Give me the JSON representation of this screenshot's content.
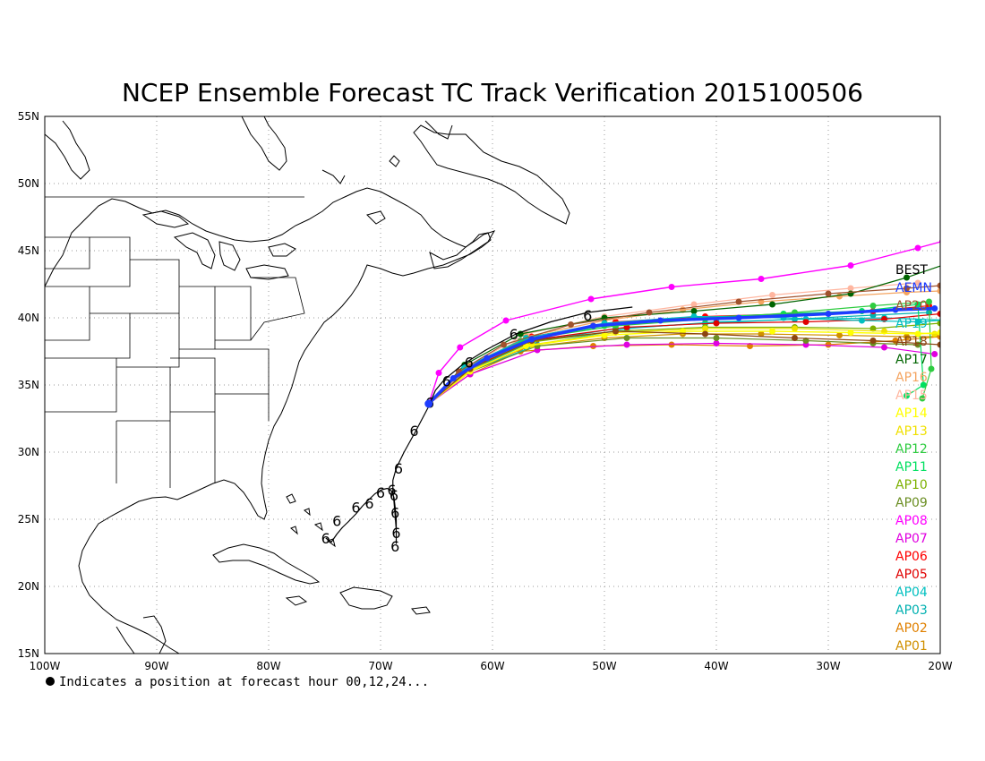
{
  "title": "NCEP Ensemble Forecast TC Track Verification 2015100506",
  "footnote": "Indicates a position at forecast hour 00,12,24...",
  "axes": {
    "lon_ticks": [
      "100W",
      "90W",
      "80W",
      "70W",
      "60W",
      "50W",
      "40W",
      "30W",
      "20W"
    ],
    "lat_ticks": [
      "55N",
      "50N",
      "45N",
      "40N",
      "35N",
      "30N",
      "25N",
      "20N",
      "15N"
    ],
    "lon_range": [
      -100,
      -20
    ],
    "lat_range": [
      15,
      55
    ],
    "grid": "dotted"
  },
  "legend": [
    {
      "label": "BEST",
      "color": "#000000"
    },
    {
      "label": "AEMN",
      "color": "#1e3cff"
    },
    {
      "label": "AP20",
      "color": "#a0522d"
    },
    {
      "label": "AP19",
      "color": "#00bfbf"
    },
    {
      "label": "AP18",
      "color": "#8b4513"
    },
    {
      "label": "AP17",
      "color": "#006400"
    },
    {
      "label": "AP16",
      "color": "#f4a460"
    },
    {
      "label": "AP15",
      "color": "#ffb6a0"
    },
    {
      "label": "AP14",
      "color": "#ffff00"
    },
    {
      "label": "AP13",
      "color": "#f0e000"
    },
    {
      "label": "AP12",
      "color": "#2ecc40"
    },
    {
      "label": "AP11",
      "color": "#00e060"
    },
    {
      "label": "AP10",
      "color": "#7cb000"
    },
    {
      "label": "AP09",
      "color": "#6b8e23"
    },
    {
      "label": "AP08",
      "color": "#ff00ff"
    },
    {
      "label": "AP07",
      "color": "#e000e0"
    },
    {
      "label": "AP06",
      "color": "#ff0000"
    },
    {
      "label": "AP05",
      "color": "#e00000"
    },
    {
      "label": "AP04",
      "color": "#00c0c0"
    },
    {
      "label": "AP03",
      "color": "#00b0b0"
    },
    {
      "label": "AP02",
      "color": "#e08000"
    },
    {
      "label": "AP01",
      "color": "#d09000"
    }
  ],
  "best_track": [
    [
      -74.9,
      23.6
    ],
    [
      -74.4,
      23.3
    ],
    [
      -73.9,
      23.9
    ],
    [
      -73.4,
      24.4
    ],
    [
      -72.9,
      24.8
    ],
    [
      -72.2,
      25.4
    ],
    [
      -71.6,
      26.0
    ],
    [
      -71.0,
      26.5
    ],
    [
      -70.5,
      26.9
    ],
    [
      -69.9,
      27.2
    ],
    [
      -69.4,
      27.3
    ],
    [
      -69.0,
      27.1
    ],
    [
      -68.8,
      26.6
    ],
    [
      -68.7,
      25.9
    ],
    [
      -68.6,
      25.0
    ],
    [
      -68.6,
      24.0
    ],
    [
      -68.6,
      23.2
    ],
    [
      -68.6,
      24.2
    ],
    [
      -68.7,
      25.3
    ],
    [
      -68.8,
      26.3
    ],
    [
      -68.9,
      27.1
    ],
    [
      -68.9,
      27.9
    ],
    [
      -68.6,
      28.8
    ],
    [
      -67.9,
      30.0
    ],
    [
      -66.9,
      31.5
    ],
    [
      -65.7,
      33.4
    ],
    [
      -65.1,
      34.6
    ],
    [
      -64.3,
      35.4
    ],
    [
      -62.7,
      36.5
    ],
    [
      -60.6,
      37.6
    ],
    [
      -57.9,
      38.8
    ],
    [
      -54.8,
      39.7
    ],
    [
      -51.5,
      40.4
    ],
    [
      -47.5,
      40.8
    ]
  ],
  "hurricane_symbols": [
    [
      -74.9,
      23.6
    ],
    [
      -73.9,
      24.9
    ],
    [
      -72.2,
      25.9
    ],
    [
      -71.0,
      26.2
    ],
    [
      -70.0,
      27.0
    ],
    [
      -69.0,
      27.2
    ],
    [
      -68.7,
      25.5
    ],
    [
      -68.6,
      24.0
    ],
    [
      -68.7,
      23.0
    ],
    [
      -68.8,
      26.8
    ],
    [
      -68.4,
      28.8
    ],
    [
      -67.0,
      31.6
    ],
    [
      -65.6,
      33.7
    ],
    [
      -64.1,
      35.3
    ],
    [
      -62.1,
      36.7
    ],
    [
      -58.1,
      38.8
    ],
    [
      -51.5,
      40.2
    ]
  ],
  "ensemble_tracks": [
    {
      "label": "AEMN",
      "color": "#1e3cff",
      "width": 3.5,
      "points": [
        [
          -65.7,
          33.6
        ],
        [
          -63.5,
          35.5
        ],
        [
          -60.5,
          37.0
        ],
        [
          -56.5,
          38.4
        ],
        [
          -51.0,
          39.4
        ],
        [
          -45.0,
          39.8
        ],
        [
          -38.0,
          40.0
        ],
        [
          -30.0,
          40.3
        ],
        [
          -24.0,
          40.6
        ],
        [
          -20.5,
          40.7
        ]
      ]
    },
    {
      "label": "AP20",
      "color": "#a0522d",
      "width": 1.2,
      "points": [
        [
          -65.7,
          33.6
        ],
        [
          -63.0,
          36.0
        ],
        [
          -59.0,
          38.0
        ],
        [
          -53.0,
          39.5
        ],
        [
          -46.0,
          40.4
        ],
        [
          -38.0,
          41.2
        ],
        [
          -30.0,
          41.8
        ],
        [
          -23.0,
          42.2
        ],
        [
          -20.0,
          42.4
        ]
      ]
    },
    {
      "label": "AP19",
      "color": "#00bfbf",
      "width": 1.2,
      "points": [
        [
          -65.7,
          33.6
        ],
        [
          -62.5,
          36.3
        ],
        [
          -57.0,
          38.5
        ],
        [
          -50.0,
          39.6
        ],
        [
          -42.0,
          40.1
        ],
        [
          -34.0,
          40.0
        ],
        [
          -27.0,
          39.8
        ],
        [
          -22.0,
          39.7
        ],
        [
          -18.5,
          39.9
        ]
      ]
    },
    {
      "label": "AP18",
      "color": "#8b4513",
      "width": 1.2,
      "points": [
        [
          -65.7,
          33.6
        ],
        [
          -62.0,
          36.2
        ],
        [
          -56.5,
          38.3
        ],
        [
          -49.0,
          39.0
        ],
        [
          -41.0,
          38.8
        ],
        [
          -33.0,
          38.5
        ],
        [
          -26.0,
          38.3
        ],
        [
          -20.0,
          38.0
        ]
      ]
    },
    {
      "label": "AP17",
      "color": "#006400",
      "width": 1.2,
      "points": [
        [
          -65.7,
          33.6
        ],
        [
          -62.5,
          36.5
        ],
        [
          -57.5,
          38.8
        ],
        [
          -50.0,
          40.0
        ],
        [
          -42.0,
          40.5
        ],
        [
          -35.0,
          41.0
        ],
        [
          -28.0,
          41.8
        ],
        [
          -23.0,
          43.0
        ],
        [
          -19.5,
          44.0
        ]
      ]
    },
    {
      "label": "AP16",
      "color": "#f4a460",
      "width": 1.2,
      "points": [
        [
          -65.7,
          33.6
        ],
        [
          -62.0,
          36.4
        ],
        [
          -57.0,
          38.6
        ],
        [
          -50.0,
          39.8
        ],
        [
          -43.0,
          40.6
        ],
        [
          -36.0,
          41.2
        ],
        [
          -29.0,
          41.6
        ],
        [
          -23.0,
          41.9
        ],
        [
          -20.0,
          42.0
        ]
      ]
    },
    {
      "label": "AP15",
      "color": "#ffb6a0",
      "width": 1.2,
      "points": [
        [
          -65.7,
          33.6
        ],
        [
          -62.0,
          36.5
        ],
        [
          -57.0,
          38.8
        ],
        [
          -50.0,
          40.1
        ],
        [
          -42.0,
          41.0
        ],
        [
          -35.0,
          41.7
        ],
        [
          -28.0,
          42.2
        ],
        [
          -22.0,
          42.6
        ]
      ]
    },
    {
      "label": "AP14",
      "color": "#ffff00",
      "width": 1.4,
      "points": [
        [
          -65.7,
          33.6
        ],
        [
          -62.0,
          36.0
        ],
        [
          -57.0,
          37.9
        ],
        [
          -50.0,
          38.7
        ],
        [
          -43.0,
          39.0
        ],
        [
          -35.0,
          39.0
        ],
        [
          -28.0,
          38.9
        ],
        [
          -22.0,
          38.8
        ],
        [
          -20.0,
          38.9
        ]
      ]
    },
    {
      "label": "AP13",
      "color": "#f0e000",
      "width": 1.2,
      "points": [
        [
          -65.7,
          33.6
        ],
        [
          -62.0,
          36.1
        ],
        [
          -56.5,
          38.0
        ],
        [
          -49.0,
          38.9
        ],
        [
          -41.0,
          39.2
        ],
        [
          -33.0,
          39.2
        ],
        [
          -25.0,
          39.0
        ],
        [
          -20.5,
          38.8
        ]
      ]
    },
    {
      "label": "AP12",
      "color": "#2ecc40",
      "width": 1.2,
      "points": [
        [
          -65.7,
          33.6
        ],
        [
          -62.0,
          36.3
        ],
        [
          -57.0,
          38.4
        ],
        [
          -49.0,
          39.4
        ],
        [
          -41.0,
          39.9
        ],
        [
          -33.0,
          40.4
        ],
        [
          -26.0,
          40.9
        ],
        [
          -21.0,
          41.2
        ],
        [
          -20.8,
          36.2
        ],
        [
          -21.6,
          34.0
        ]
      ]
    },
    {
      "label": "AP11",
      "color": "#00e060",
      "width": 1.2,
      "points": [
        [
          -65.7,
          33.6
        ],
        [
          -62.5,
          36.2
        ],
        [
          -57.5,
          38.3
        ],
        [
          -50.0,
          39.4
        ],
        [
          -42.0,
          40.0
        ],
        [
          -34.0,
          40.3
        ],
        [
          -27.0,
          40.5
        ],
        [
          -22.0,
          41.0
        ],
        [
          -21.5,
          35.0
        ],
        [
          -23.0,
          34.2
        ]
      ]
    },
    {
      "label": "AP10",
      "color": "#7cb000",
      "width": 1.2,
      "points": [
        [
          -65.7,
          33.6
        ],
        [
          -62.0,
          36.2
        ],
        [
          -56.5,
          38.2
        ],
        [
          -49.0,
          39.0
        ],
        [
          -41.0,
          39.3
        ],
        [
          -33.0,
          39.3
        ],
        [
          -26.0,
          39.2
        ],
        [
          -20.0,
          39.6
        ]
      ]
    },
    {
      "label": "AP09",
      "color": "#6b8e23",
      "width": 1.2,
      "points": [
        [
          -65.7,
          33.6
        ],
        [
          -62.0,
          36.0
        ],
        [
          -56.0,
          37.9
        ],
        [
          -48.0,
          38.5
        ],
        [
          -40.0,
          38.5
        ],
        [
          -32.0,
          38.3
        ],
        [
          -26.0,
          38.1
        ],
        [
          -22.0,
          38.0
        ]
      ]
    },
    {
      "label": "AP08",
      "color": "#ff00ff",
      "width": 1.4,
      "points": [
        [
          -65.7,
          33.6
        ],
        [
          -64.8,
          35.9
        ],
        [
          -62.9,
          37.8
        ],
        [
          -58.8,
          39.8
        ],
        [
          -51.2,
          41.4
        ],
        [
          -44.0,
          42.3
        ],
        [
          -36.0,
          42.9
        ],
        [
          -28.0,
          43.9
        ],
        [
          -22.0,
          45.2
        ],
        [
          -19.8,
          45.7
        ]
      ]
    },
    {
      "label": "AP07",
      "color": "#e000e0",
      "width": 1.2,
      "points": [
        [
          -65.7,
          33.6
        ],
        [
          -62.0,
          35.8
        ],
        [
          -56.0,
          37.6
        ],
        [
          -48.0,
          38.0
        ],
        [
          -40.0,
          38.1
        ],
        [
          -32.0,
          38.0
        ],
        [
          -25.0,
          37.8
        ],
        [
          -20.5,
          37.3
        ]
      ]
    },
    {
      "label": "AP06",
      "color": "#ff0000",
      "width": 1.2,
      "points": [
        [
          -65.7,
          33.6
        ],
        [
          -62.0,
          36.4
        ],
        [
          -56.5,
          38.6
        ],
        [
          -49.0,
          39.7
        ],
        [
          -41.0,
          40.1
        ],
        [
          -33.0,
          40.3
        ],
        [
          -26.0,
          40.5
        ],
        [
          -21.0,
          40.9
        ]
      ]
    },
    {
      "label": "AP05",
      "color": "#e00000",
      "width": 1.2,
      "points": [
        [
          -65.7,
          33.6
        ],
        [
          -62.0,
          36.3
        ],
        [
          -56.0,
          38.4
        ],
        [
          -48.0,
          39.3
        ],
        [
          -40.0,
          39.6
        ],
        [
          -32.0,
          39.7
        ],
        [
          -25.0,
          39.9
        ],
        [
          -20.0,
          40.3
        ]
      ]
    },
    {
      "label": "AP04",
      "color": "#00c0c0",
      "width": 1.2,
      "points": [
        [
          -65.7,
          33.6
        ],
        [
          -62.0,
          36.0
        ],
        [
          -56.0,
          38.0
        ],
        [
          -48.0,
          39.2
        ],
        [
          -40.0,
          39.7
        ],
        [
          -32.0,
          39.9
        ],
        [
          -25.0,
          40.0
        ],
        [
          -18.5,
          39.8
        ]
      ]
    },
    {
      "label": "AP03",
      "color": "#00b0b0",
      "width": 1.2,
      "points": [
        [
          -65.7,
          33.6
        ],
        [
          -62.0,
          36.1
        ],
        [
          -56.5,
          38.2
        ],
        [
          -49.0,
          39.2
        ],
        [
          -41.0,
          39.6
        ],
        [
          -33.0,
          39.9
        ],
        [
          -26.0,
          40.2
        ],
        [
          -21.0,
          40.4
        ]
      ]
    },
    {
      "label": "AP02",
      "color": "#e08000",
      "width": 1.2,
      "points": [
        [
          -65.7,
          33.6
        ],
        [
          -62.0,
          35.8
        ],
        [
          -57.5,
          37.5
        ],
        [
          -51.0,
          37.9
        ],
        [
          -44.0,
          38.0
        ],
        [
          -37.0,
          37.9
        ],
        [
          -30.0,
          38.0
        ],
        [
          -24.0,
          38.3
        ],
        [
          -20.0,
          38.6
        ]
      ]
    },
    {
      "label": "AP01",
      "color": "#d09000",
      "width": 1.2,
      "points": [
        [
          -65.7,
          33.6
        ],
        [
          -62.0,
          36.0
        ],
        [
          -57.0,
          37.8
        ],
        [
          -50.0,
          38.5
        ],
        [
          -43.0,
          38.8
        ],
        [
          -36.0,
          38.8
        ],
        [
          -29.0,
          38.7
        ],
        [
          -23.0,
          38.6
        ],
        [
          -20.0,
          38.6
        ]
      ]
    }
  ]
}
